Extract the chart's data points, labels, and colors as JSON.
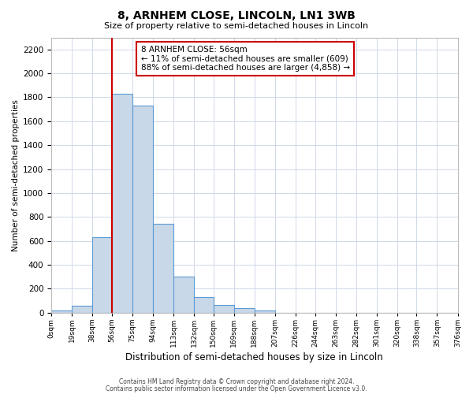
{
  "title": "8, ARNHEM CLOSE, LINCOLN, LN1 3WB",
  "subtitle": "Size of property relative to semi-detached houses in Lincoln",
  "xlabel": "Distribution of semi-detached houses by size in Lincoln",
  "ylabel": "Number of semi-detached properties",
  "bin_edges": [
    0,
    19,
    38,
    56,
    75,
    94,
    113,
    132,
    150,
    169,
    188,
    207,
    226,
    244,
    263,
    282,
    301,
    320,
    338,
    357,
    376
  ],
  "bar_heights": [
    20,
    60,
    630,
    1830,
    1730,
    740,
    300,
    130,
    65,
    40,
    15,
    0,
    0,
    0,
    0,
    0,
    0,
    0,
    0,
    0
  ],
  "bar_color": "#c8d8e8",
  "bar_edge_color": "#5b9bd5",
  "property_line_x": 56,
  "property_line_color": "#cc0000",
  "annotation_title": "8 ARNHEM CLOSE: 56sqm",
  "annotation_line1": "← 11% of semi-detached houses are smaller (609)",
  "annotation_line2": "88% of semi-detached houses are larger (4,858) →",
  "annotation_box_color": "#ffffff",
  "annotation_box_edge": "#cc0000",
  "ylim": [
    0,
    2300
  ],
  "yticks": [
    0,
    200,
    400,
    600,
    800,
    1000,
    1200,
    1400,
    1600,
    1800,
    2000,
    2200
  ],
  "tick_labels": [
    "0sqm",
    "19sqm",
    "38sqm",
    "56sqm",
    "75sqm",
    "94sqm",
    "113sqm",
    "132sqm",
    "150sqm",
    "169sqm",
    "188sqm",
    "207sqm",
    "226sqm",
    "244sqm",
    "263sqm",
    "282sqm",
    "301sqm",
    "320sqm",
    "338sqm",
    "357sqm",
    "376sqm"
  ],
  "footer1": "Contains HM Land Registry data © Crown copyright and database right 2024.",
  "footer2": "Contains public sector information licensed under the Open Government Licence v3.0.",
  "background_color": "#ffffff",
  "grid_color": "#d0d8e8"
}
